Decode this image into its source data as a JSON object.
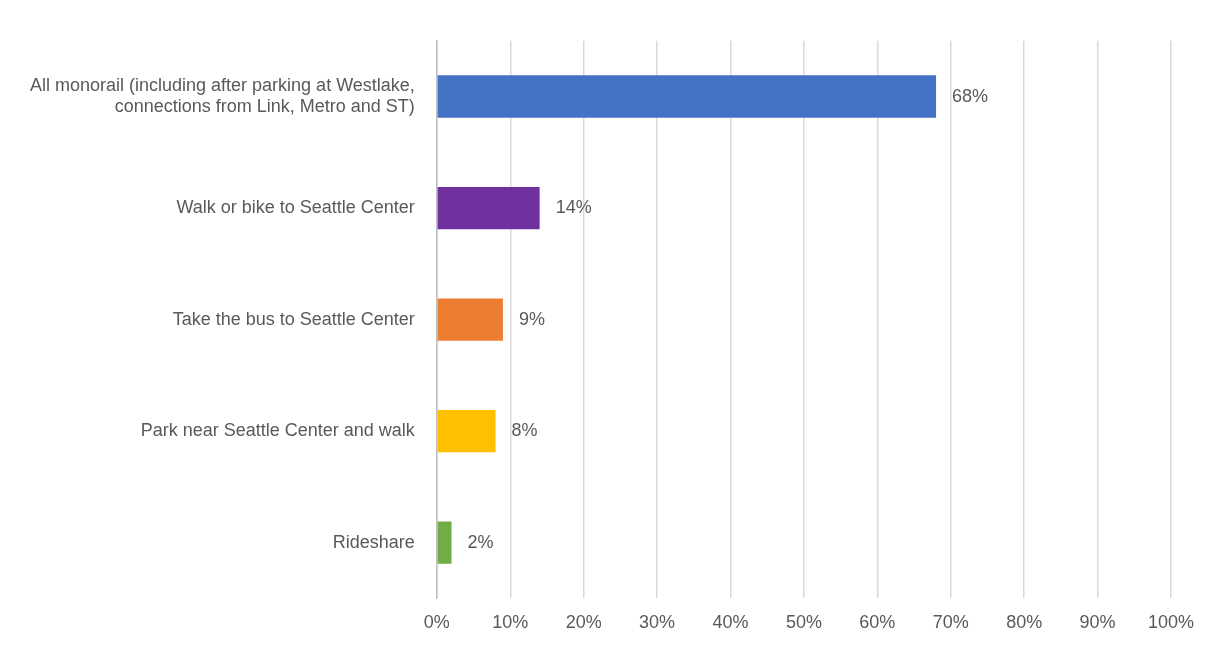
{
  "chart_data": {
    "type": "bar",
    "orientation": "horizontal",
    "categories": [
      "All monorail (including after parking at Westlake, connections from Link, Metro and ST)",
      "Walk or bike to Seattle Center",
      "Take the bus to Seattle Center",
      "Park near Seattle Center and walk",
      "Rideshare"
    ],
    "values": [
      68,
      14,
      9,
      8,
      2
    ],
    "colors": [
      "#4472c4",
      "#7030a0",
      "#ed7d31",
      "#ffc000",
      "#70ad47"
    ],
    "value_labels": [
      "68%",
      "14%",
      "9%",
      "8%",
      "2%"
    ],
    "xlim": [
      0,
      100
    ],
    "xticks": [
      {
        "value": 0,
        "label": "0%"
      },
      {
        "value": 10,
        "label": "10%"
      },
      {
        "value": 20,
        "label": "20%"
      },
      {
        "value": 30,
        "label": "30%"
      },
      {
        "value": 40,
        "label": "40%"
      },
      {
        "value": 50,
        "label": "50%"
      },
      {
        "value": 60,
        "label": "60%"
      },
      {
        "value": 70,
        "label": "70%"
      },
      {
        "value": 80,
        "label": "80%"
      },
      {
        "value": 90,
        "label": "90%"
      },
      {
        "value": 100,
        "label": "100%"
      }
    ],
    "grid": "x"
  }
}
